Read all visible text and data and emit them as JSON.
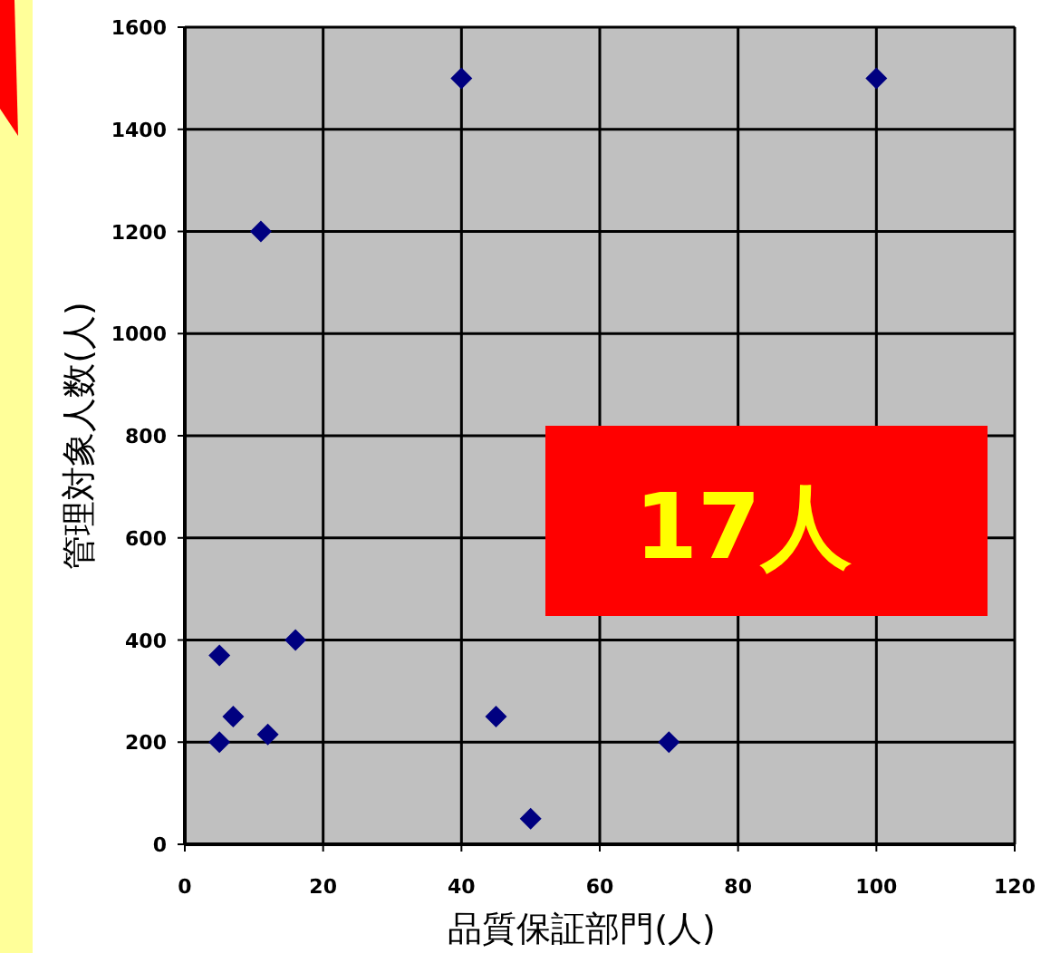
{
  "chart_data": {
    "type": "scatter",
    "xlabel": "品質保証部門(人)",
    "ylabel": "管理対象人数(人)",
    "x": [
      40,
      100,
      11,
      5,
      16,
      7,
      5,
      12,
      45,
      50,
      70
    ],
    "values": [
      1500,
      1500,
      1200,
      370,
      400,
      250,
      200,
      215,
      250,
      50,
      200
    ],
    "color": "#000080",
    "marker": "diamond",
    "grid": true,
    "xlim": [
      0,
      120
    ],
    "xticks": [
      0,
      20,
      40,
      60,
      80,
      100,
      120
    ],
    "ylim": [
      0,
      1600
    ],
    "yticks": [
      0,
      200,
      400,
      600,
      800,
      1000,
      1200,
      1400,
      1600
    ],
    "annotations": [
      "17人"
    ]
  }
}
